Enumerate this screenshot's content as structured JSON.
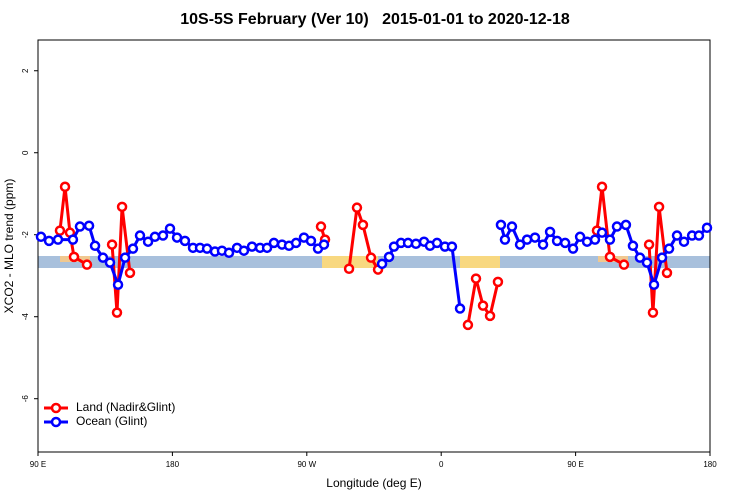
{
  "chart_data": {
    "type": "line",
    "title": "10S-5S February (Ver 10)   2015-01-01 to 2020-12-18",
    "x_label": "Longitude (deg E)",
    "y_label": "XCO2 - MLO trend (ppm)",
    "xlim": [
      90,
      540
    ],
    "ylim": [
      -7.3,
      2.75
    ],
    "xticks": [
      {
        "value": 90,
        "label": "90 E"
      },
      180,
      {
        "value": 270,
        "label": "90 W"
      },
      {
        "value": 360,
        "label": "0"
      },
      {
        "value": 450,
        "label": "90 E"
      },
      {
        "value": 540,
        "label": "180"
      }
    ],
    "yticks": [
      2,
      0,
      -2,
      -4,
      -6
    ],
    "legend": "bottom-left",
    "grid": false,
    "series": [
      {
        "name": "Land (Nadir&Glint)",
        "color": "#ff0000",
        "x": [
          104.7,
          108.1,
          111.4,
          114.1,
          122.8,
          null,
          139.6,
          142.9,
          146.3,
          151.6,
          null,
          279.5,
          282.2,
          null,
          298.3,
          303.6,
          307.6,
          313.0,
          317.7,
          null,
          377.9,
          383.3,
          388.0,
          392.7,
          398.0,
          null,
          464.3,
          467.7,
          473.0,
          482.4,
          null,
          499.2,
          501.8,
          505.9,
          511.2
        ],
        "values": [
          -1.9,
          -0.83,
          -1.95,
          -2.54,
          -2.73,
          null,
          -2.24,
          -3.9,
          -1.32,
          -2.93,
          null,
          -1.8,
          -2.12,
          null,
          -2.83,
          -1.34,
          -1.76,
          -2.56,
          -2.85,
          null,
          -4.2,
          -3.07,
          -3.73,
          -3.98,
          -3.15,
          null,
          -1.9,
          -0.83,
          -2.54,
          -2.73,
          null,
          -2.24,
          -3.9,
          -1.32,
          -2.93
        ]
      },
      {
        "name": "Ocean (Glint)",
        "color": "#0000ff",
        "x": [
          92.0,
          97.4,
          103.4,
          113.4,
          118.1,
          124.2,
          128.2,
          133.5,
          138.2,
          143.6,
          148.3,
          153.6,
          158.3,
          163.7,
          168.3,
          173.7,
          178.4,
          183.1,
          188.4,
          193.8,
          198.5,
          203.2,
          208.5,
          213.2,
          217.9,
          223.3,
          227.9,
          233.3,
          238.7,
          243.4,
          248.0,
          253.4,
          258.1,
          262.8,
          268.1,
          272.8,
          277.5,
          281.5,
          null,
          320.4,
          325.1,
          328.4,
          333.1,
          337.8,
          343.1,
          348.5,
          352.5,
          357.2,
          362.5,
          367.2,
          372.6,
          null,
          400.0,
          402.7,
          407.4,
          412.8,
          417.5,
          422.8,
          428.2,
          432.9,
          437.6,
          443.0,
          448.3,
          453.0,
          457.7,
          463.0,
          467.7,
          473.0,
          477.7,
          483.7,
          488.4,
          493.1,
          497.8,
          502.5,
          507.9,
          512.6,
          517.9,
          522.6,
          528.0,
          532.6,
          538.0
        ],
        "values": [
          -2.05,
          -2.15,
          -2.12,
          -2.12,
          -1.8,
          -1.78,
          -2.27,
          -2.56,
          -2.68,
          -3.22,
          -2.56,
          -2.34,
          -2.02,
          -2.17,
          -2.05,
          -2.02,
          -1.85,
          -2.07,
          -2.15,
          -2.32,
          -2.32,
          -2.34,
          -2.41,
          -2.39,
          -2.44,
          -2.32,
          -2.39,
          -2.29,
          -2.32,
          -2.32,
          -2.2,
          -2.24,
          -2.27,
          -2.2,
          -2.07,
          -2.15,
          -2.34,
          -2.24,
          null,
          -2.71,
          -2.54,
          -2.29,
          -2.2,
          -2.2,
          -2.22,
          -2.17,
          -2.27,
          -2.2,
          -2.29,
          -2.29,
          -3.8,
          null,
          -1.76,
          -2.12,
          -1.8,
          -2.24,
          -2.12,
          -2.07,
          -2.24,
          -1.93,
          -2.15,
          -2.2,
          -2.34,
          -2.05,
          -2.17,
          -2.12,
          -1.95,
          -2.12,
          -1.8,
          -1.76,
          -2.27,
          -2.56,
          -2.68,
          -3.22,
          -2.56,
          -2.34,
          -2.02,
          -2.17,
          -2.02,
          -2.02,
          -1.83
        ]
      }
    ]
  }
}
